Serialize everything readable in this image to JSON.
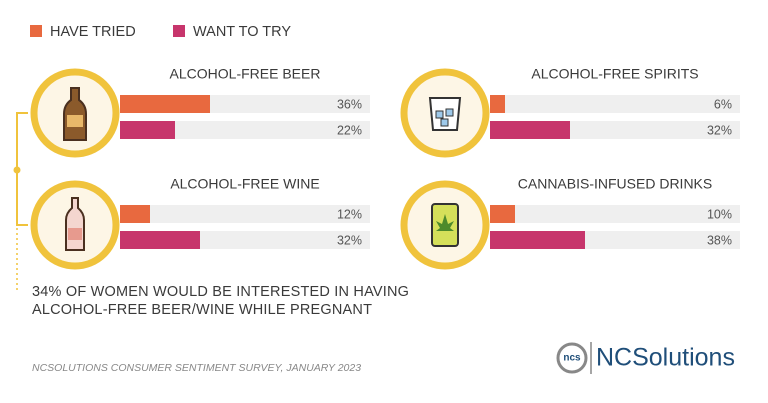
{
  "chart_data": {
    "type": "bar",
    "categories": [
      "ALCOHOL-FREE BEER",
      "ALCOHOL-FREE SPIRITS",
      "ALCOHOL-FREE WINE",
      "CANNABIS-INFUSED DRINKS"
    ],
    "series": [
      {
        "name": "HAVE TRIED",
        "color": "#e8693f",
        "values": [
          36,
          6,
          12,
          10
        ],
        "value_labels": [
          "36%",
          "6%",
          "12%",
          "10%"
        ]
      },
      {
        "name": "WANT TO TRY",
        "color": "#c7356c",
        "values": [
          22,
          32,
          32,
          38
        ],
        "value_labels": [
          "22%",
          "32%",
          "32%",
          "38%"
        ]
      }
    ],
    "xlim": [
      0,
      100
    ],
    "annotation": "34% OF WOMEN WOULD BE INTERESTED IN HAVING ALCOHOL-FREE BEER/WINE WHILE PREGNANT",
    "source": "NCSOLUTIONS CONSUMER SENTIMENT SURVEY, JANUARY 2023",
    "logo": {
      "mark": "ncs",
      "text": "NCSolutions"
    }
  }
}
